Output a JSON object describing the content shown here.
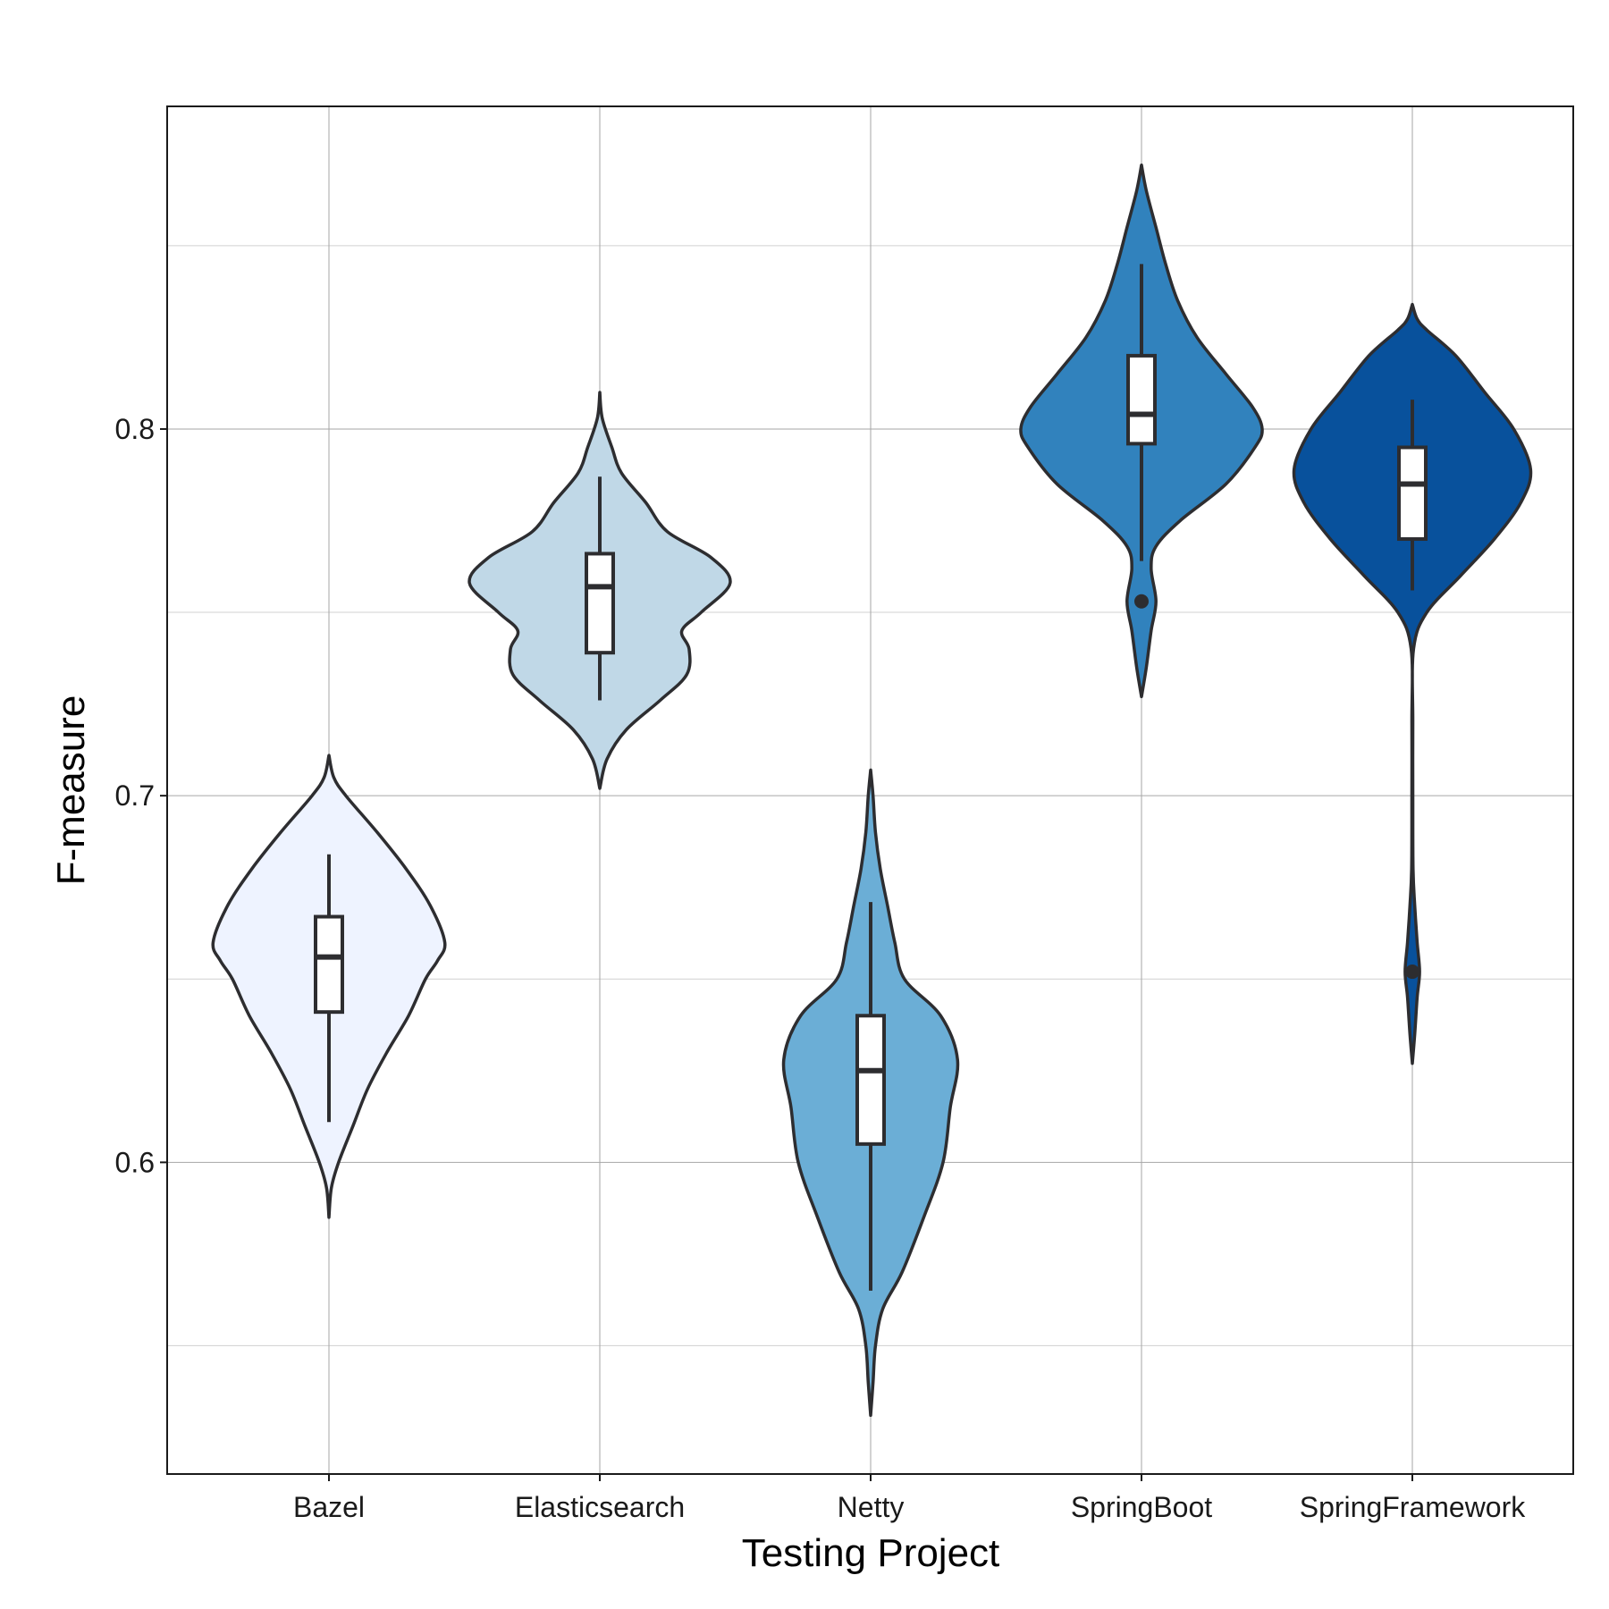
{
  "chart_data": {
    "type": "violin",
    "xlabel": "Testing Project",
    "ylabel": "F-measure",
    "ylim": [
      0.515,
      0.888
    ],
    "y_ticks": [
      0.6,
      0.7,
      0.8
    ],
    "y_tick_labels": [
      "0.6",
      "0.7",
      "0.8"
    ],
    "y_minor_gridlines": [
      0.55,
      0.65,
      0.75,
      0.85
    ],
    "grid": true,
    "categories": [
      "Bazel",
      "Elasticsearch",
      "Netty",
      "SpringBoot",
      "SpringFramework"
    ],
    "series": [
      {
        "name": "Bazel",
        "color": "#EEF3FF",
        "box": {
          "whisker_low": 0.611,
          "q1": 0.641,
          "median": 0.656,
          "q3": 0.667,
          "whisker_high": 0.684
        },
        "outliers": [],
        "density": [
          [
            0.585,
            0
          ],
          [
            0.593,
            0.01
          ],
          [
            0.6,
            0.04
          ],
          [
            0.61,
            0.1
          ],
          [
            0.62,
            0.16
          ],
          [
            0.63,
            0.24
          ],
          [
            0.64,
            0.33
          ],
          [
            0.65,
            0.4
          ],
          [
            0.655,
            0.45
          ],
          [
            0.66,
            0.48
          ],
          [
            0.67,
            0.42
          ],
          [
            0.68,
            0.32
          ],
          [
            0.69,
            0.2
          ],
          [
            0.7,
            0.07
          ],
          [
            0.705,
            0.02
          ],
          [
            0.711,
            0
          ]
        ]
      },
      {
        "name": "Elasticsearch",
        "color": "#C0D8E7",
        "box": {
          "whisker_low": 0.726,
          "q1": 0.739,
          "median": 0.757,
          "q3": 0.766,
          "whisker_high": 0.787
        },
        "outliers": [],
        "density": [
          [
            0.702,
            0
          ],
          [
            0.71,
            0.03
          ],
          [
            0.718,
            0.11
          ],
          [
            0.726,
            0.25
          ],
          [
            0.733,
            0.36
          ],
          [
            0.74,
            0.37
          ],
          [
            0.745,
            0.34
          ],
          [
            0.75,
            0.42
          ],
          [
            0.758,
            0.54
          ],
          [
            0.765,
            0.46
          ],
          [
            0.772,
            0.28
          ],
          [
            0.78,
            0.19
          ],
          [
            0.788,
            0.09
          ],
          [
            0.795,
            0.05
          ],
          [
            0.803,
            0.01
          ],
          [
            0.81,
            0
          ]
        ]
      },
      {
        "name": "Netty",
        "color": "#6BAED6",
        "box": {
          "whisker_low": 0.565,
          "q1": 0.605,
          "median": 0.625,
          "q3": 0.64,
          "whisker_high": 0.671
        },
        "outliers": [],
        "density": [
          [
            0.531,
            0
          ],
          [
            0.54,
            0.01
          ],
          [
            0.55,
            0.02
          ],
          [
            0.56,
            0.05
          ],
          [
            0.57,
            0.13
          ],
          [
            0.585,
            0.22
          ],
          [
            0.6,
            0.3
          ],
          [
            0.615,
            0.33
          ],
          [
            0.628,
            0.36
          ],
          [
            0.64,
            0.29
          ],
          [
            0.65,
            0.14
          ],
          [
            0.66,
            0.1
          ],
          [
            0.67,
            0.07
          ],
          [
            0.68,
            0.04
          ],
          [
            0.69,
            0.02
          ],
          [
            0.7,
            0.01
          ],
          [
            0.707,
            0
          ]
        ]
      },
      {
        "name": "SpringBoot",
        "color": "#3182BD",
        "box": {
          "whisker_low": 0.764,
          "q1": 0.796,
          "median": 0.804,
          "q3": 0.82,
          "whisker_high": 0.845
        },
        "outliers": [
          0.753
        ],
        "density": [
          [
            0.727,
            0
          ],
          [
            0.735,
            0.02
          ],
          [
            0.745,
            0.04
          ],
          [
            0.753,
            0.06
          ],
          [
            0.762,
            0.04
          ],
          [
            0.768,
            0.06
          ],
          [
            0.775,
            0.16
          ],
          [
            0.785,
            0.35
          ],
          [
            0.795,
            0.47
          ],
          [
            0.8,
            0.5
          ],
          [
            0.806,
            0.46
          ],
          [
            0.815,
            0.35
          ],
          [
            0.825,
            0.23
          ],
          [
            0.835,
            0.15
          ],
          [
            0.845,
            0.1
          ],
          [
            0.855,
            0.06
          ],
          [
            0.865,
            0.02
          ],
          [
            0.872,
            0
          ]
        ]
      },
      {
        "name": "SpringFramework",
        "color": "#08519C",
        "box": {
          "whisker_low": 0.756,
          "q1": 0.77,
          "median": 0.785,
          "q3": 0.795,
          "whisker_high": 0.808
        },
        "outliers": [
          0.652
        ],
        "density": [
          [
            0.627,
            0
          ],
          [
            0.635,
            0.01
          ],
          [
            0.645,
            0.02
          ],
          [
            0.652,
            0.03
          ],
          [
            0.66,
            0.02
          ],
          [
            0.67,
            0.01
          ],
          [
            0.68,
            0.003
          ],
          [
            0.7,
            0.002
          ],
          [
            0.72,
            0.002
          ],
          [
            0.74,
            0.005
          ],
          [
            0.75,
            0.06
          ],
          [
            0.76,
            0.2
          ],
          [
            0.77,
            0.34
          ],
          [
            0.78,
            0.45
          ],
          [
            0.789,
            0.49
          ],
          [
            0.8,
            0.42
          ],
          [
            0.81,
            0.3
          ],
          [
            0.82,
            0.18
          ],
          [
            0.827,
            0.06
          ],
          [
            0.83,
            0.02
          ],
          [
            0.834,
            0
          ]
        ]
      }
    ]
  }
}
